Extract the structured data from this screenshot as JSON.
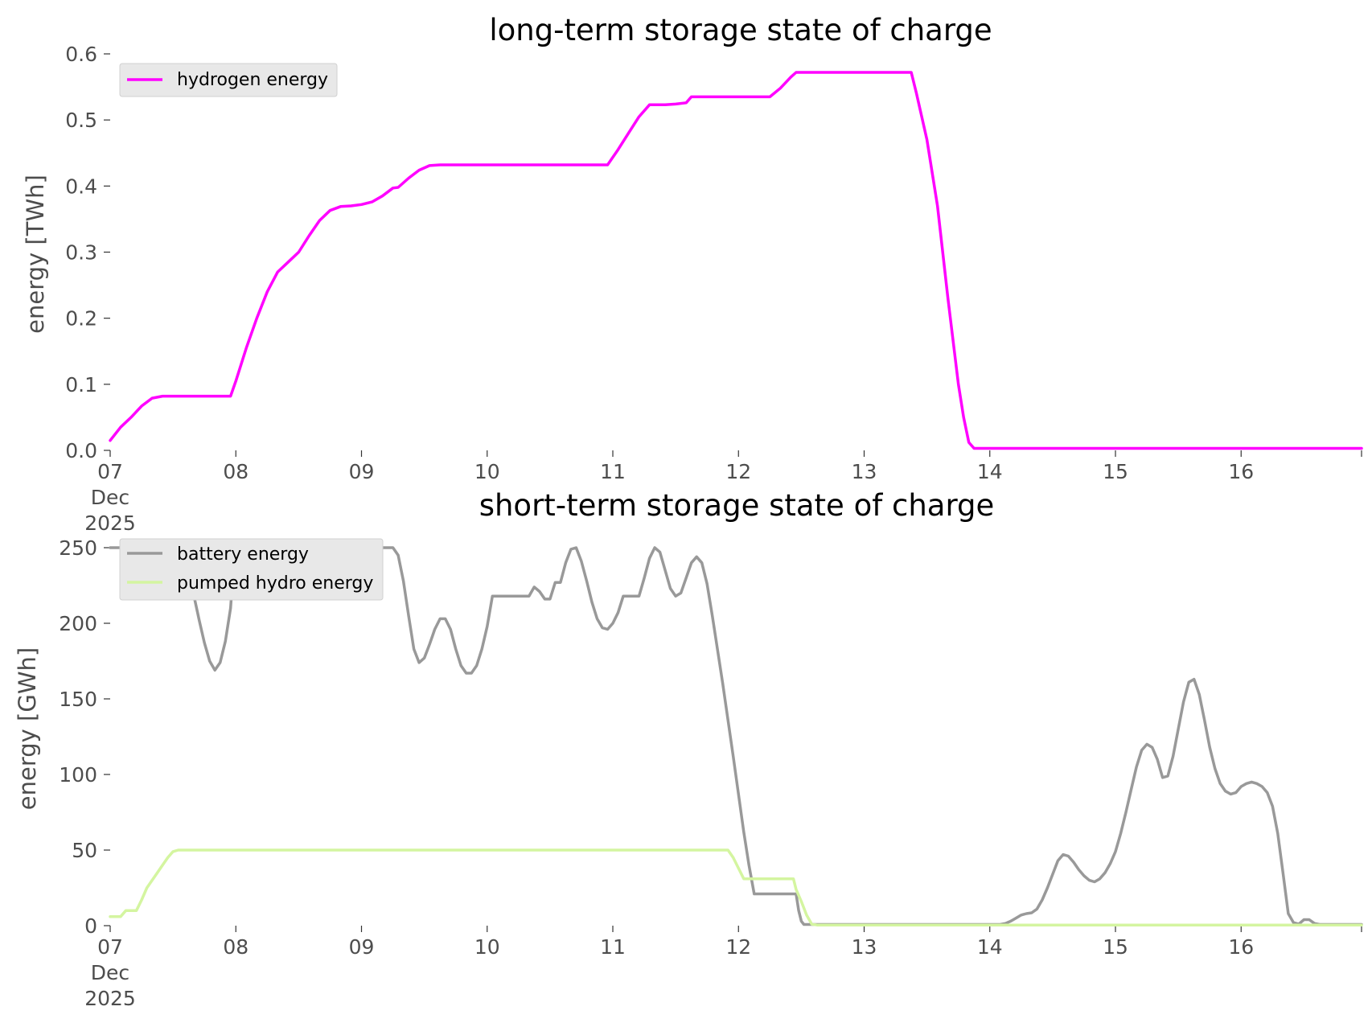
{
  "chart_data": [
    {
      "type": "line",
      "title": "long-term storage state of charge",
      "ylabel": "energy [TWh]",
      "xlabel": "",
      "x_unit": "hours from 2025-12-07 00:00",
      "xlim": [
        0,
        239
      ],
      "ylim": [
        0.0,
        0.6
      ],
      "yticks": [
        0.0,
        0.1,
        0.2,
        0.3,
        0.4,
        0.5,
        0.6
      ],
      "ytick_labels": [
        "0.0",
        "0.1",
        "0.2",
        "0.3",
        "0.4",
        "0.5",
        "0.6"
      ],
      "xtick_labels": [
        "07",
        "08",
        "09",
        "10",
        "11",
        "12",
        "13",
        "14",
        "15",
        "16"
      ],
      "xtick_first_extra": [
        "Dec",
        "2025"
      ],
      "grid": false,
      "legend_position": "upper-left",
      "series": [
        {
          "name": "hydrogen energy",
          "color": "#ff00ff",
          "points": [
            [
              0,
              0.015
            ],
            [
              2,
              0.035
            ],
            [
              4,
              0.05
            ],
            [
              6,
              0.067
            ],
            [
              8,
              0.079
            ],
            [
              10,
              0.082
            ],
            [
              23,
              0.082
            ],
            [
              24,
              0.105
            ],
            [
              26,
              0.155
            ],
            [
              28,
              0.2
            ],
            [
              30,
              0.24
            ],
            [
              32,
              0.27
            ],
            [
              34,
              0.285
            ],
            [
              36,
              0.3
            ],
            [
              38,
              0.325
            ],
            [
              40,
              0.348
            ],
            [
              42,
              0.363
            ],
            [
              44,
              0.369
            ],
            [
              46,
              0.37
            ],
            [
              48,
              0.372
            ],
            [
              50,
              0.376
            ],
            [
              52,
              0.385
            ],
            [
              54,
              0.397
            ],
            [
              55,
              0.398
            ],
            [
              57,
              0.412
            ],
            [
              59,
              0.424
            ],
            [
              61,
              0.431
            ],
            [
              63,
              0.432
            ],
            [
              71,
              0.432
            ],
            [
              80,
              0.432
            ],
            [
              95,
              0.432
            ],
            [
              97,
              0.455
            ],
            [
              99,
              0.48
            ],
            [
              101,
              0.505
            ],
            [
              103,
              0.523
            ],
            [
              106,
              0.523
            ],
            [
              108,
              0.524
            ],
            [
              110,
              0.526
            ],
            [
              111,
              0.535
            ],
            [
              113,
              0.535
            ],
            [
              119,
              0.535
            ],
            [
              126,
              0.535
            ],
            [
              128,
              0.548
            ],
            [
              130,
              0.565
            ],
            [
              131,
              0.572
            ],
            [
              135,
              0.572
            ],
            [
              145,
              0.572
            ],
            [
              152,
              0.572
            ],
            [
              153,
              0.572
            ],
            [
              154,
              0.54
            ],
            [
              156,
              0.47
            ],
            [
              158,
              0.37
            ],
            [
              160,
              0.23
            ],
            [
              162,
              0.1
            ],
            [
              163,
              0.05
            ],
            [
              164,
              0.012
            ],
            [
              165,
              0.003
            ],
            [
              170,
              0.003
            ],
            [
              239,
              0.003
            ]
          ]
        }
      ]
    },
    {
      "type": "line",
      "title": "short-term storage state of charge",
      "ylabel": "energy [GWh]",
      "xlabel": "",
      "x_unit": "hours from 2025-12-07 00:00",
      "xlim": [
        0,
        239
      ],
      "ylim": [
        0,
        250
      ],
      "yticks": [
        0,
        50,
        100,
        150,
        200,
        250
      ],
      "ytick_labels": [
        "0",
        "50",
        "100",
        "150",
        "200",
        "250"
      ],
      "xtick_labels": [
        "07",
        "08",
        "09",
        "10",
        "11",
        "12",
        "13",
        "14",
        "15",
        "16"
      ],
      "xtick_first_extra": [
        "Dec",
        "2025"
      ],
      "grid": false,
      "legend_position": "upper-left",
      "series": [
        {
          "name": "battery energy",
          "color": "#999999",
          "points": [
            [
              0,
              250
            ],
            [
              13,
              250
            ],
            [
              15,
              237
            ],
            [
              16,
              218
            ],
            [
              17,
              202
            ],
            [
              18,
              187
            ],
            [
              19,
              175
            ],
            [
              20,
              169
            ],
            [
              21,
              174
            ],
            [
              22,
              188
            ],
            [
              23,
              210
            ],
            [
              23.5,
              235
            ],
            [
              24,
              237
            ],
            [
              40,
              237
            ],
            [
              46,
              237
            ],
            [
              47,
              237
            ],
            [
              48,
              250
            ],
            [
              52,
              250
            ],
            [
              54,
              250
            ],
            [
              55,
              245
            ],
            [
              56,
              228
            ],
            [
              57,
              205
            ],
            [
              58,
              183
            ],
            [
              59,
              174
            ],
            [
              60,
              177
            ],
            [
              61,
              186
            ],
            [
              62,
              196
            ],
            [
              63,
              203
            ],
            [
              64,
              203
            ],
            [
              65,
              196
            ],
            [
              66,
              183
            ],
            [
              67,
              172
            ],
            [
              68,
              167
            ],
            [
              69,
              167
            ],
            [
              70,
              172
            ],
            [
              71,
              183
            ],
            [
              72,
              198
            ],
            [
              73,
              218
            ],
            [
              74,
              218
            ],
            [
              77,
              218
            ],
            [
              80,
              218
            ],
            [
              81,
              224
            ],
            [
              82,
              221
            ],
            [
              83,
              216
            ],
            [
              84,
              216
            ],
            [
              85,
              227
            ],
            [
              86,
              227
            ],
            [
              87,
              240
            ],
            [
              88,
              249
            ],
            [
              89,
              250
            ],
            [
              90,
              241
            ],
            [
              91,
              228
            ],
            [
              92,
              214
            ],
            [
              93,
              203
            ],
            [
              94,
              197
            ],
            [
              95,
              196
            ],
            [
              96,
              200
            ],
            [
              97,
              207
            ],
            [
              98,
              218
            ],
            [
              99,
              218
            ],
            [
              101,
              218
            ],
            [
              102,
              230
            ],
            [
              103,
              243
            ],
            [
              104,
              250
            ],
            [
              105,
              247
            ],
            [
              106,
              235
            ],
            [
              107,
              223
            ],
            [
              108,
              218
            ],
            [
              109,
              220
            ],
            [
              110,
              230
            ],
            [
              111,
              240
            ],
            [
              112,
              244
            ],
            [
              113,
              240
            ],
            [
              114,
              226
            ],
            [
              115,
              205
            ],
            [
              117,
              160
            ],
            [
              119,
              112
            ],
            [
              121,
              62
            ],
            [
              122,
              40
            ],
            [
              123,
              21
            ],
            [
              128,
              21
            ],
            [
              130,
              21
            ],
            [
              131,
              21
            ],
            [
              131.5,
              10
            ],
            [
              132,
              3
            ],
            [
              132.5,
              0.8
            ],
            [
              140,
              0.8
            ],
            [
              170,
              0.8
            ],
            [
              171,
              1.5
            ],
            [
              172,
              3
            ],
            [
              173,
              5
            ],
            [
              174,
              7
            ],
            [
              175,
              8
            ],
            [
              176,
              8.5
            ],
            [
              177,
              11
            ],
            [
              178,
              17
            ],
            [
              179,
              25
            ],
            [
              180,
              34
            ],
            [
              181,
              43
            ],
            [
              182,
              47
            ],
            [
              183,
              46
            ],
            [
              184,
              42
            ],
            [
              185,
              37
            ],
            [
              186,
              33
            ],
            [
              187,
              30
            ],
            [
              188,
              29
            ],
            [
              189,
              31
            ],
            [
              190,
              35
            ],
            [
              191,
              41
            ],
            [
              192,
              49
            ],
            [
              193,
              61
            ],
            [
              194,
              75
            ],
            [
              195,
              90
            ],
            [
              196,
              105
            ],
            [
              197,
              116
            ],
            [
              198,
              120
            ],
            [
              199,
              118
            ],
            [
              200,
              110
            ],
            [
              201,
              98
            ],
            [
              202,
              99
            ],
            [
              203,
              112
            ],
            [
              204,
              130
            ],
            [
              205,
              148
            ],
            [
              206,
              161
            ],
            [
              207,
              163
            ],
            [
              208,
              153
            ],
            [
              209,
              136
            ],
            [
              210,
              118
            ],
            [
              211,
              104
            ],
            [
              212,
              94
            ],
            [
              213,
              89
            ],
            [
              214,
              87
            ],
            [
              215,
              88
            ],
            [
              216,
              92
            ],
            [
              217,
              94
            ],
            [
              218,
              95
            ],
            [
              219,
              94
            ],
            [
              220,
              92
            ],
            [
              221,
              88
            ],
            [
              222,
              79
            ],
            [
              223,
              61
            ],
            [
              224,
              35
            ],
            [
              225,
              8
            ],
            [
              226,
              2
            ],
            [
              227,
              1
            ],
            [
              228,
              4
            ],
            [
              229,
              4
            ],
            [
              230,
              1.5
            ],
            [
              231,
              0.8
            ],
            [
              239,
              0.8
            ]
          ]
        },
        {
          "name": "pumped hydro energy",
          "color": "#d4f5a0",
          "points": [
            [
              0,
              6
            ],
            [
              2,
              6
            ],
            [
              3,
              10
            ],
            [
              5,
              10
            ],
            [
              6,
              17
            ],
            [
              7,
              25
            ],
            [
              8,
              30
            ],
            [
              9,
              35
            ],
            [
              10,
              40
            ],
            [
              11,
              45
            ],
            [
              12,
              49
            ],
            [
              13,
              50
            ],
            [
              60,
              50
            ],
            [
              100,
              50
            ],
            [
              118,
              50
            ],
            [
              119,
              45
            ],
            [
              120,
              38
            ],
            [
              121,
              31
            ],
            [
              130,
              31
            ],
            [
              130.5,
              31
            ],
            [
              131,
              24
            ],
            [
              132,
              16
            ],
            [
              133,
              7
            ],
            [
              134,
              1
            ],
            [
              135,
              0.4
            ],
            [
              239,
              0.4
            ]
          ]
        }
      ]
    }
  ]
}
